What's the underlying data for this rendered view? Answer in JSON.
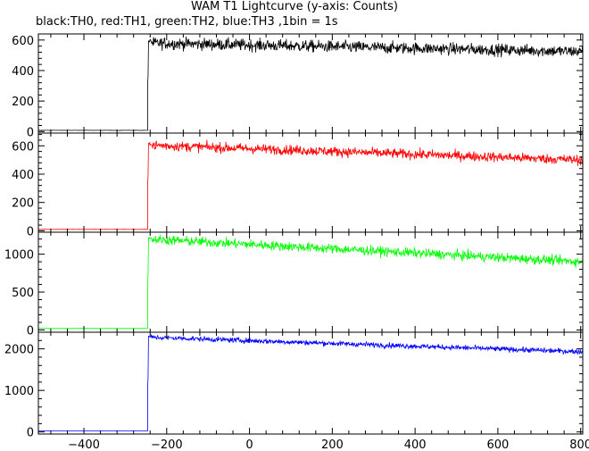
{
  "chart_data": {
    "type": "line",
    "title": "WAM T1 Lightcurve (y-axis: Counts)",
    "subtitle": "black:TH0, red:TH1, green:TH2, blue:TH3 ,1bin = 1s",
    "xlabel": "",
    "xlim": [
      -510,
      805
    ],
    "x_ticks": [
      -400,
      -200,
      0,
      200,
      400,
      600,
      800
    ],
    "step_time": -246,
    "grid": false,
    "panels": [
      {
        "name": "TH0",
        "color": "#000000",
        "ylim": [
          -10,
          640
        ],
        "y_ticks": [
          0,
          200,
          400,
          600
        ],
        "pre_level": 8,
        "post_start": 580,
        "post_end": 525,
        "noise": 28,
        "spike_at_step": 650
      },
      {
        "name": "TH1",
        "color": "#ff0000",
        "ylim": [
          -10,
          690
        ],
        "y_ticks": [
          0,
          200,
          400,
          600
        ],
        "pre_level": 10,
        "post_start": 605,
        "post_end": 500,
        "noise": 25,
        "spike_at_step": 690
      },
      {
        "name": "TH2",
        "color": "#00ff00",
        "ylim": [
          -30,
          1290
        ],
        "y_ticks": [
          0,
          500,
          1000
        ],
        "pre_level": 20,
        "post_start": 1200,
        "post_end": 900,
        "noise": 45,
        "spike_at_step": 1270
      },
      {
        "name": "TH3",
        "color": "#0000ff",
        "ylim": [
          -50,
          2400
        ],
        "y_ticks": [
          0,
          1000,
          2000
        ],
        "pre_level": 25,
        "post_start": 2280,
        "post_end": 1930,
        "noise": 45,
        "spike_at_step": 2310
      }
    ]
  }
}
